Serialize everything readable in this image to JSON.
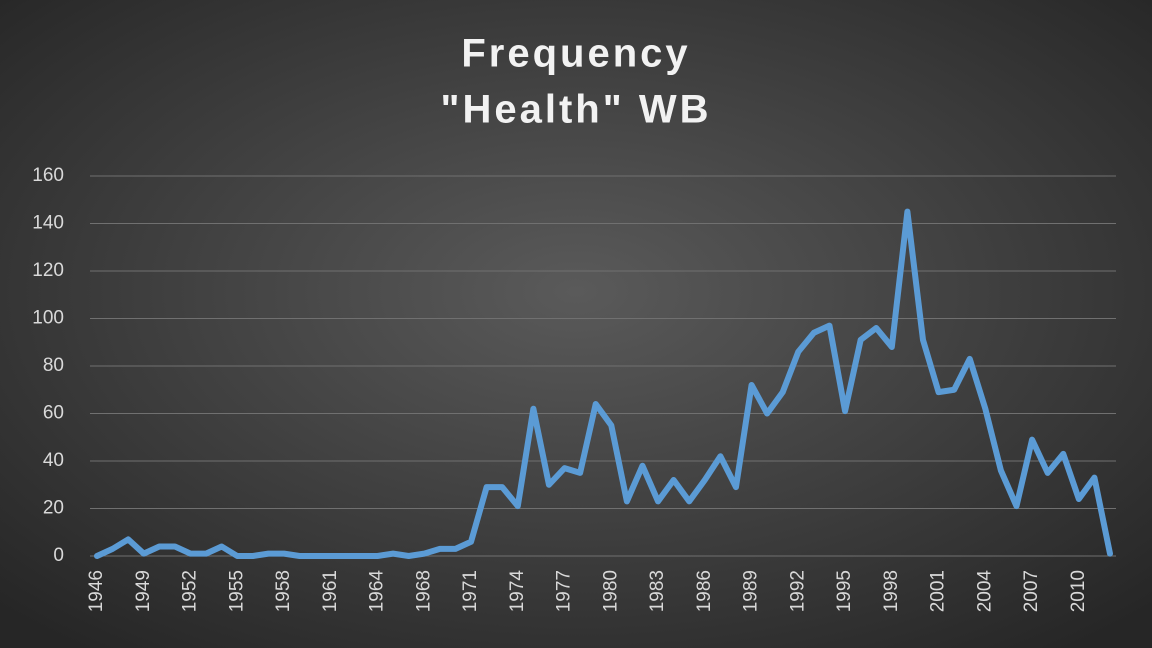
{
  "chart_data": {
    "type": "line",
    "title": "Frequency",
    "subtitle": "\"Health\" WB",
    "categories": [
      "1946",
      null,
      null,
      "1949",
      null,
      null,
      "1952",
      null,
      null,
      "1955",
      null,
      null,
      "1958",
      null,
      null,
      "1961",
      null,
      null,
      "1964",
      null,
      null,
      "1968",
      null,
      null,
      "1971",
      null,
      null,
      "1974",
      null,
      null,
      "1977",
      null,
      null,
      "1980",
      null,
      null,
      "1983",
      null,
      null,
      "1986",
      null,
      null,
      "1989",
      null,
      null,
      "1992",
      null,
      null,
      "1995",
      null,
      null,
      "1998",
      null,
      null,
      "2001",
      null,
      null,
      "2004",
      null,
      null,
      "2007",
      null,
      null,
      "2010",
      null,
      null
    ],
    "series": [
      {
        "name": "Health",
        "color": "#5b9bd5",
        "values": [
          0,
          3,
          7,
          1,
          4,
          4,
          1,
          1,
          4,
          0,
          0,
          1,
          1,
          0,
          0,
          0,
          0,
          0,
          0,
          1,
          0,
          1,
          3,
          3,
          6,
          29,
          29,
          21,
          62,
          30,
          37,
          35,
          64,
          55,
          23,
          38,
          23,
          32,
          23,
          32,
          42,
          29,
          72,
          60,
          69,
          86,
          94,
          97,
          61,
          91,
          96,
          88,
          145,
          91,
          69,
          70,
          83,
          62,
          36,
          21,
          49,
          35,
          43,
          24,
          33,
          1
        ]
      }
    ],
    "ylim": [
      0,
      160
    ],
    "yticks": [
      0,
      20,
      40,
      60,
      80,
      100,
      120,
      140,
      160
    ],
    "grid": true
  }
}
